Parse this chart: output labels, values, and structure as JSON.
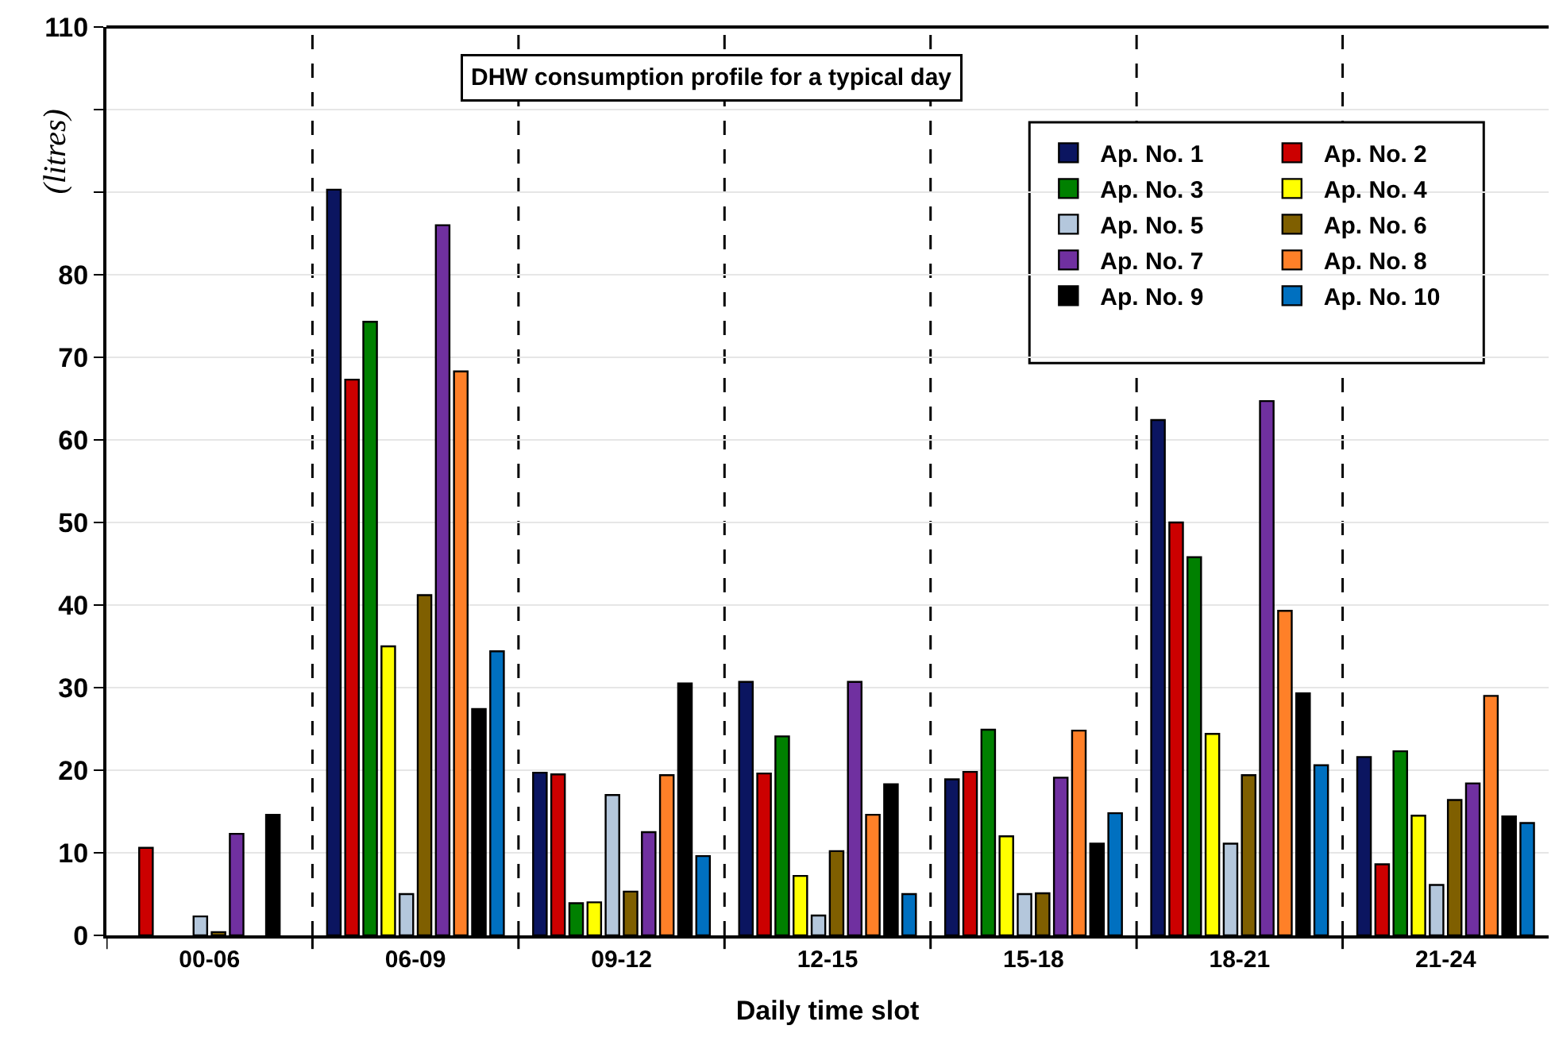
{
  "chart_data": {
    "type": "bar",
    "title": "DHW consumption profile for a typical day",
    "xlabel": "Daily time slot",
    "ylabel": "(litres)",
    "categories": [
      "00-06",
      "06-09",
      "09-12",
      "12-15",
      "15-18",
      "18-21",
      "21-24"
    ],
    "series": [
      {
        "name": "Ap. No. 1",
        "color": "#0b1560",
        "values": [
          null,
          90.3,
          19.7,
          30.7,
          18.9,
          62.4,
          21.6
        ]
      },
      {
        "name": "Ap. No. 2",
        "color": "#cc0000",
        "values": [
          10.6,
          67.3,
          19.5,
          19.6,
          19.8,
          50,
          8.6
        ]
      },
      {
        "name": "Ap. No. 3",
        "color": "#008000",
        "values": [
          null,
          74.3,
          3.9,
          24.1,
          24.9,
          45.8,
          22.3
        ]
      },
      {
        "name": "Ap. No. 4",
        "color": "#ffff00",
        "values": [
          null,
          35,
          4,
          7.2,
          12,
          24.4,
          14.5
        ]
      },
      {
        "name": "Ap. No. 5",
        "color": "#b4c7dc",
        "values": [
          2.3,
          5,
          17,
          2.4,
          5,
          11.1,
          6.1
        ]
      },
      {
        "name": "Ap. No. 6",
        "color": "#7f5f00",
        "values": [
          0.4,
          41.2,
          5.3,
          10.2,
          5.1,
          19.4,
          16.4
        ]
      },
      {
        "name": "Ap. No. 7",
        "color": "#7030a0",
        "values": [
          12.3,
          86,
          12.5,
          30.7,
          19.1,
          64.7,
          18.4
        ]
      },
      {
        "name": "Ap. No. 8",
        "color": "#ff8028",
        "values": [
          null,
          68.3,
          19.4,
          14.6,
          24.8,
          39.3,
          29
        ]
      },
      {
        "name": "Ap. No. 9",
        "color": "#000000",
        "values": [
          14.6,
          27.4,
          30.5,
          18.3,
          11.1,
          29.3,
          14.4
        ]
      },
      {
        "name": "Ap. No. 10",
        "color": "#0070c0",
        "values": [
          null,
          34.4,
          9.6,
          5,
          14.8,
          20.6,
          13.6
        ]
      }
    ],
    "ylim": [
      0,
      110
    ],
    "yticks": [
      0,
      10,
      20,
      30,
      40,
      50,
      60,
      70,
      80,
      {
        "value": 90,
        "label": null
      },
      {
        "value": 100,
        "label": null
      },
      110
    ],
    "grid": true,
    "legend": "top right"
  }
}
